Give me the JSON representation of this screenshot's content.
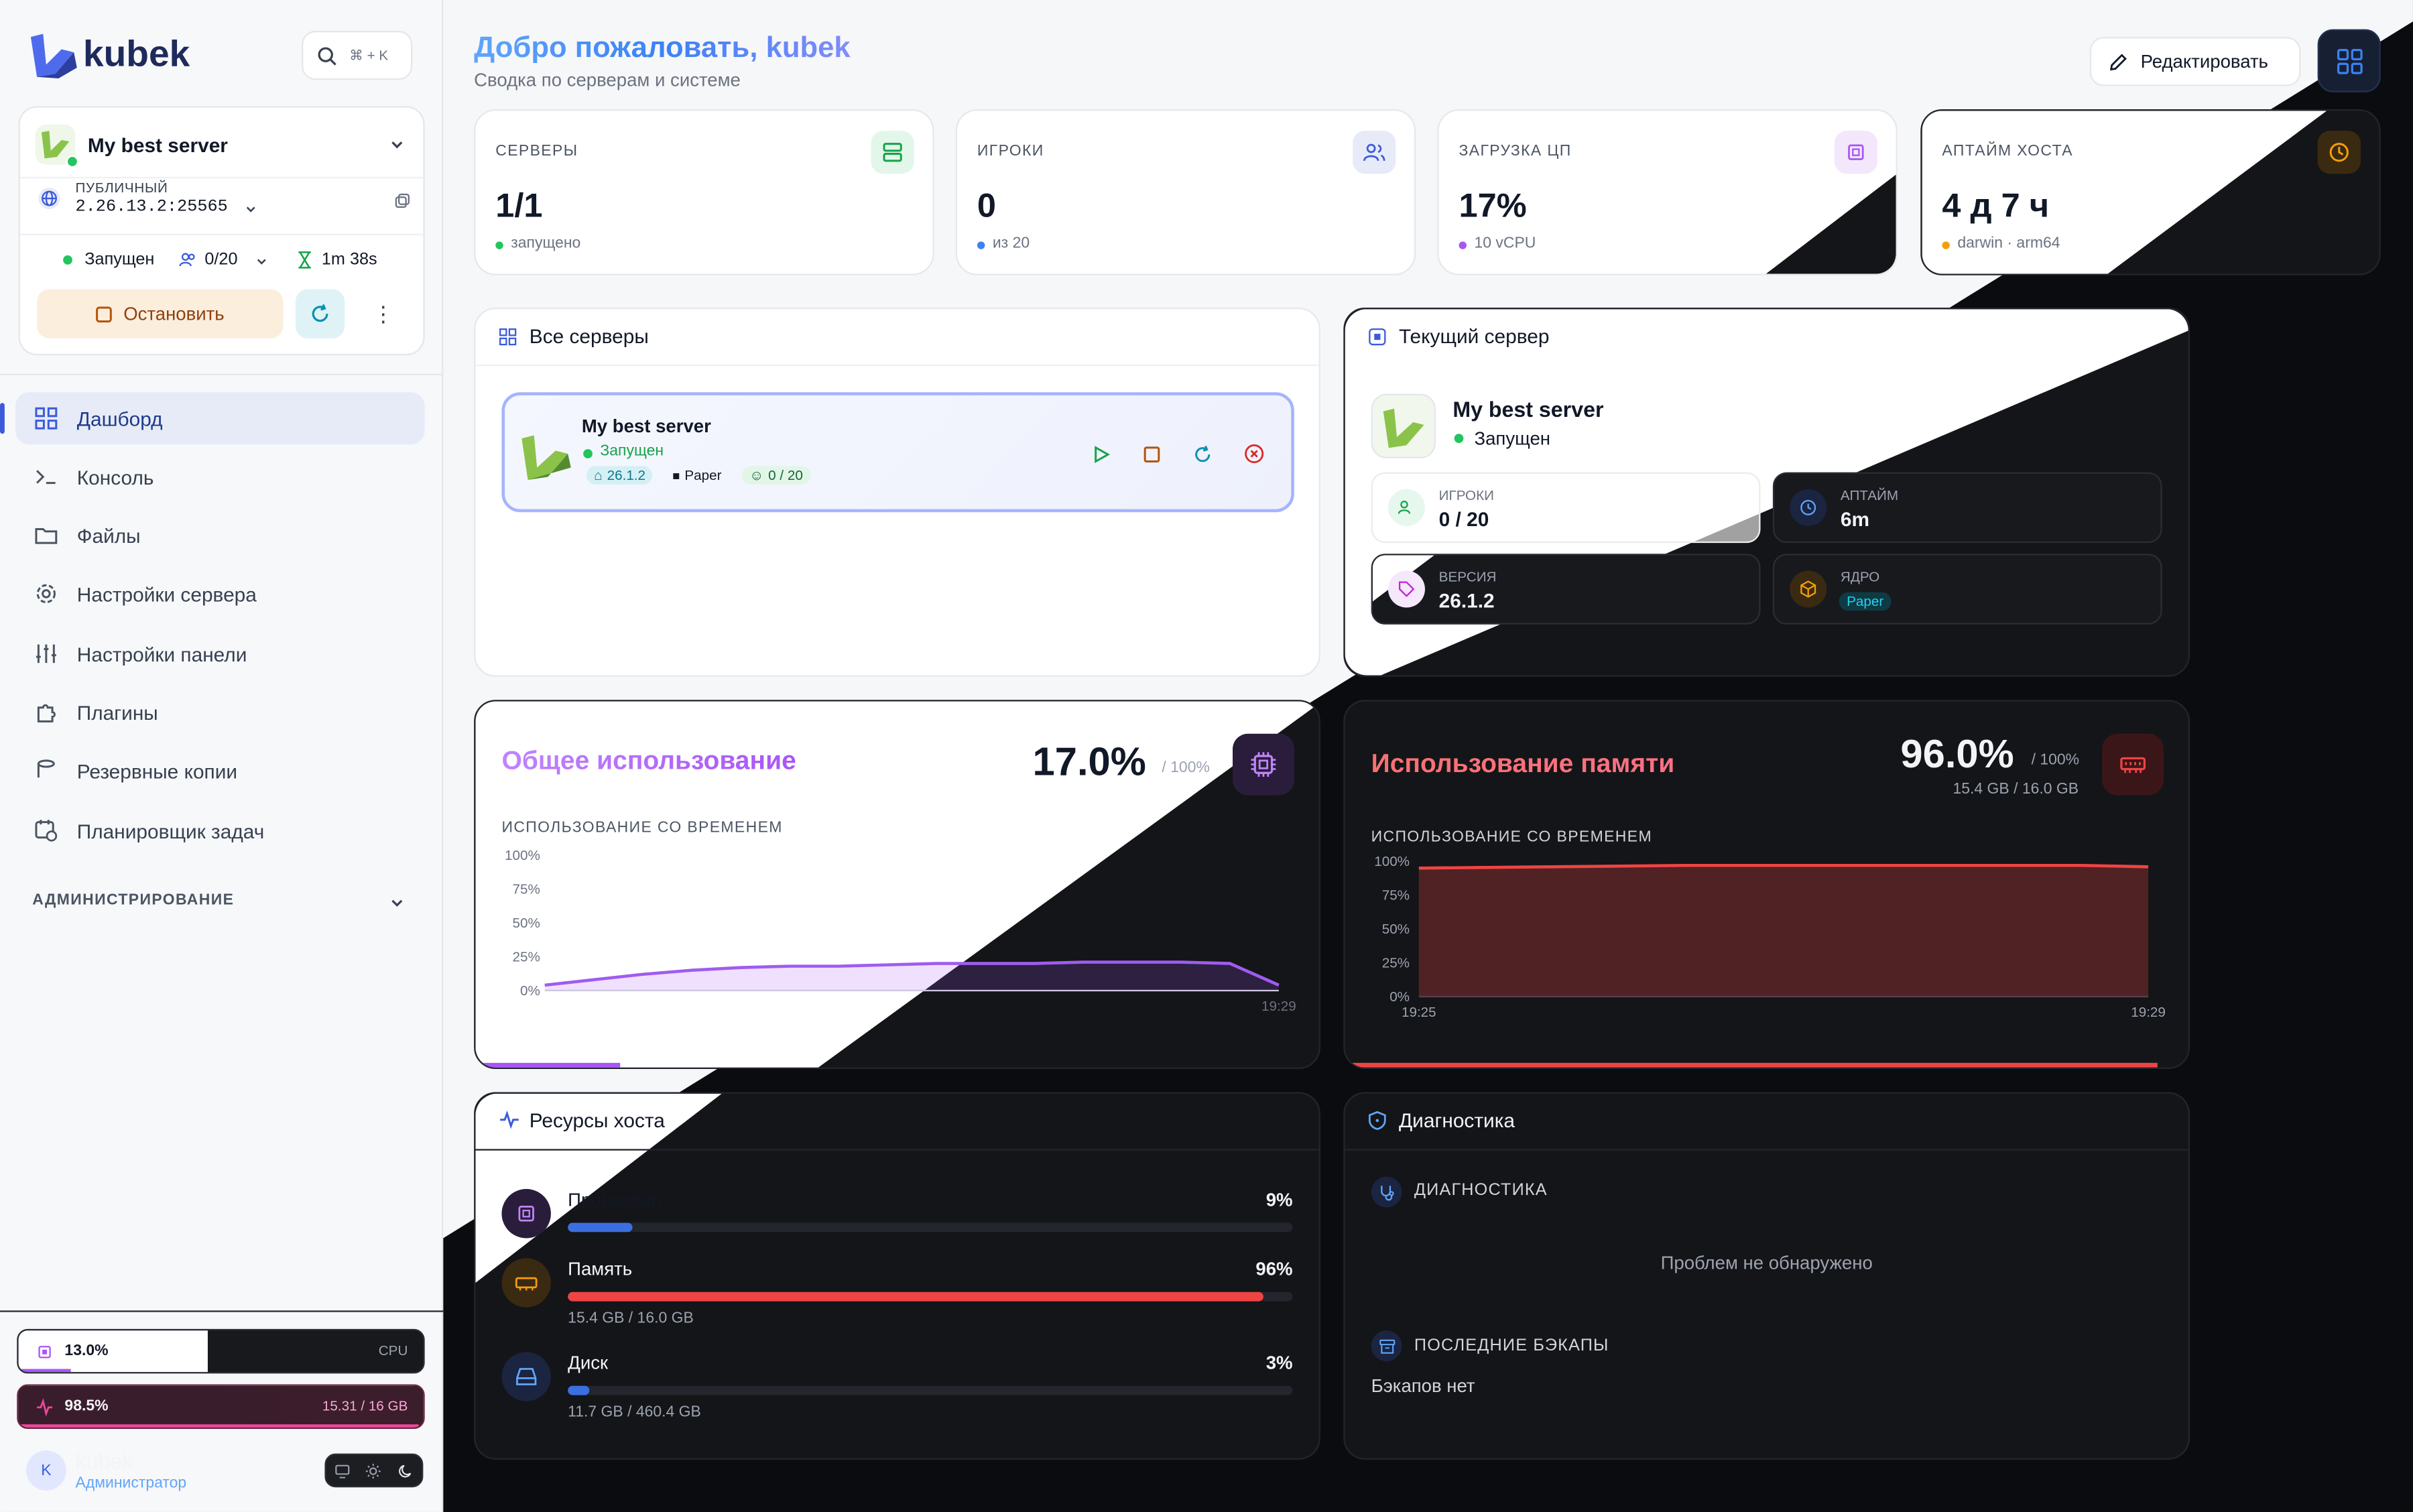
{
  "app": {
    "logo_text": "kubek",
    "search_shortcut": "⌘ + K"
  },
  "server_selector": {
    "name": "My best server",
    "ip_label": "ПУБЛИЧНЫЙ",
    "ip": "2.26.13.2:25565",
    "status": "Запущен",
    "players": "0/20",
    "uptime": "1m 38s",
    "stop_label": "Остановить"
  },
  "nav": {
    "items": [
      {
        "label": "Дашборд",
        "icon": "dashboard-icon"
      },
      {
        "label": "Консоль",
        "icon": "terminal-icon"
      },
      {
        "label": "Файлы",
        "icon": "folder-icon"
      },
      {
        "label": "Настройки сервера",
        "icon": "gear-icon"
      },
      {
        "label": "Настройки панели",
        "icon": "sliders-icon"
      },
      {
        "label": "Плагины",
        "icon": "puzzle-icon"
      },
      {
        "label": "Резервные копии",
        "icon": "database-icon"
      },
      {
        "label": "Планировщик задач",
        "icon": "calendar-clock-icon"
      }
    ],
    "admin_section": "АДМИНИСТРИРОВАНИЕ"
  },
  "sidebar_stats": {
    "cpu_value": "13.0%",
    "cpu_label": "CPU",
    "ram_value": "98.5%",
    "ram_label": "15.31 / 16 GB"
  },
  "user": {
    "avatar": "K",
    "name": "kubek",
    "role": "Администратор"
  },
  "header": {
    "title": "Добро пожаловать, kubek",
    "subtitle": "Сводка по серверам и системе",
    "edit_label": "Редактировать"
  },
  "stat_cards": [
    {
      "label": "СЕРВЕРЫ",
      "value": "1/1",
      "sub": "запущено"
    },
    {
      "label": "ИГРОКИ",
      "value": "0",
      "sub": "из 20"
    },
    {
      "label": "ЗАГРУЗКА ЦП",
      "value": "17%",
      "sub": "10 vCPU"
    },
    {
      "label": "АПТАЙМ ХОСТА",
      "value": "4 д 7 ч",
      "sub": "darwin · arm64"
    }
  ],
  "all_servers": {
    "title": "Все серверы",
    "server": {
      "name": "My best server",
      "status": "Запущен",
      "version": "26.1.2",
      "core": "Paper",
      "players": "0 / 20"
    }
  },
  "current_server": {
    "title": "Текущий сервер",
    "name": "My best server",
    "status": "Запущен",
    "players_label": "ИГРОКИ",
    "players": "0 / 20",
    "uptime_label": "АПТАЙМ",
    "uptime": "6m",
    "version_label": "ВЕРСИЯ",
    "version": "26.1.2",
    "core_label": "ЯДРО",
    "core": "Paper"
  },
  "cpu_chart": {
    "title": "Общее использование",
    "value": "17.0%",
    "max": "/ 100%",
    "subtitle": "ИСПОЛЬЗОВАНИЕ СО ВРЕМЕНЕМ",
    "yticks": [
      "100%",
      "75%",
      "50%",
      "25%",
      "0%"
    ],
    "xlabel_end": "19:29",
    "progress": 0.17
  },
  "mem_chart": {
    "title": "Использование памяти",
    "value": "96.0%",
    "max": "/ 100%",
    "detail": "15.4 GB / 16.0 GB",
    "subtitle": "ИСПОЛЬЗОВАНИЕ СО ВРЕМЕНЕМ",
    "yticks": [
      "100%",
      "75%",
      "50%",
      "25%",
      "0%"
    ],
    "xlabel_start": "19:25",
    "xlabel_end": "19:29",
    "progress": 0.96
  },
  "host_resources": {
    "title": "Ресурсы хоста",
    "items": [
      {
        "label": "Процессор",
        "value": "9%",
        "detail": "",
        "fraction": 0.09
      },
      {
        "label": "Память",
        "value": "96%",
        "detail": "15.4 GB / 16.0 GB",
        "fraction": 0.96
      },
      {
        "label": "Диск",
        "value": "3%",
        "detail": "11.7 GB / 460.4 GB",
        "fraction": 0.03
      }
    ]
  },
  "diagnostics": {
    "title": "Диагностика",
    "section1": "ДИАГНОСТИКА",
    "no_problems": "Проблем не обнаружено",
    "section2": "ПОСЛЕДНИЕ БЭКАПЫ",
    "no_backups": "Бэкапов нет"
  },
  "colors": {
    "accent": "#3b5bdb",
    "green": "#22c55e",
    "purple": "#a855f7",
    "red": "#ef4444",
    "orange": "#f59e0b"
  }
}
